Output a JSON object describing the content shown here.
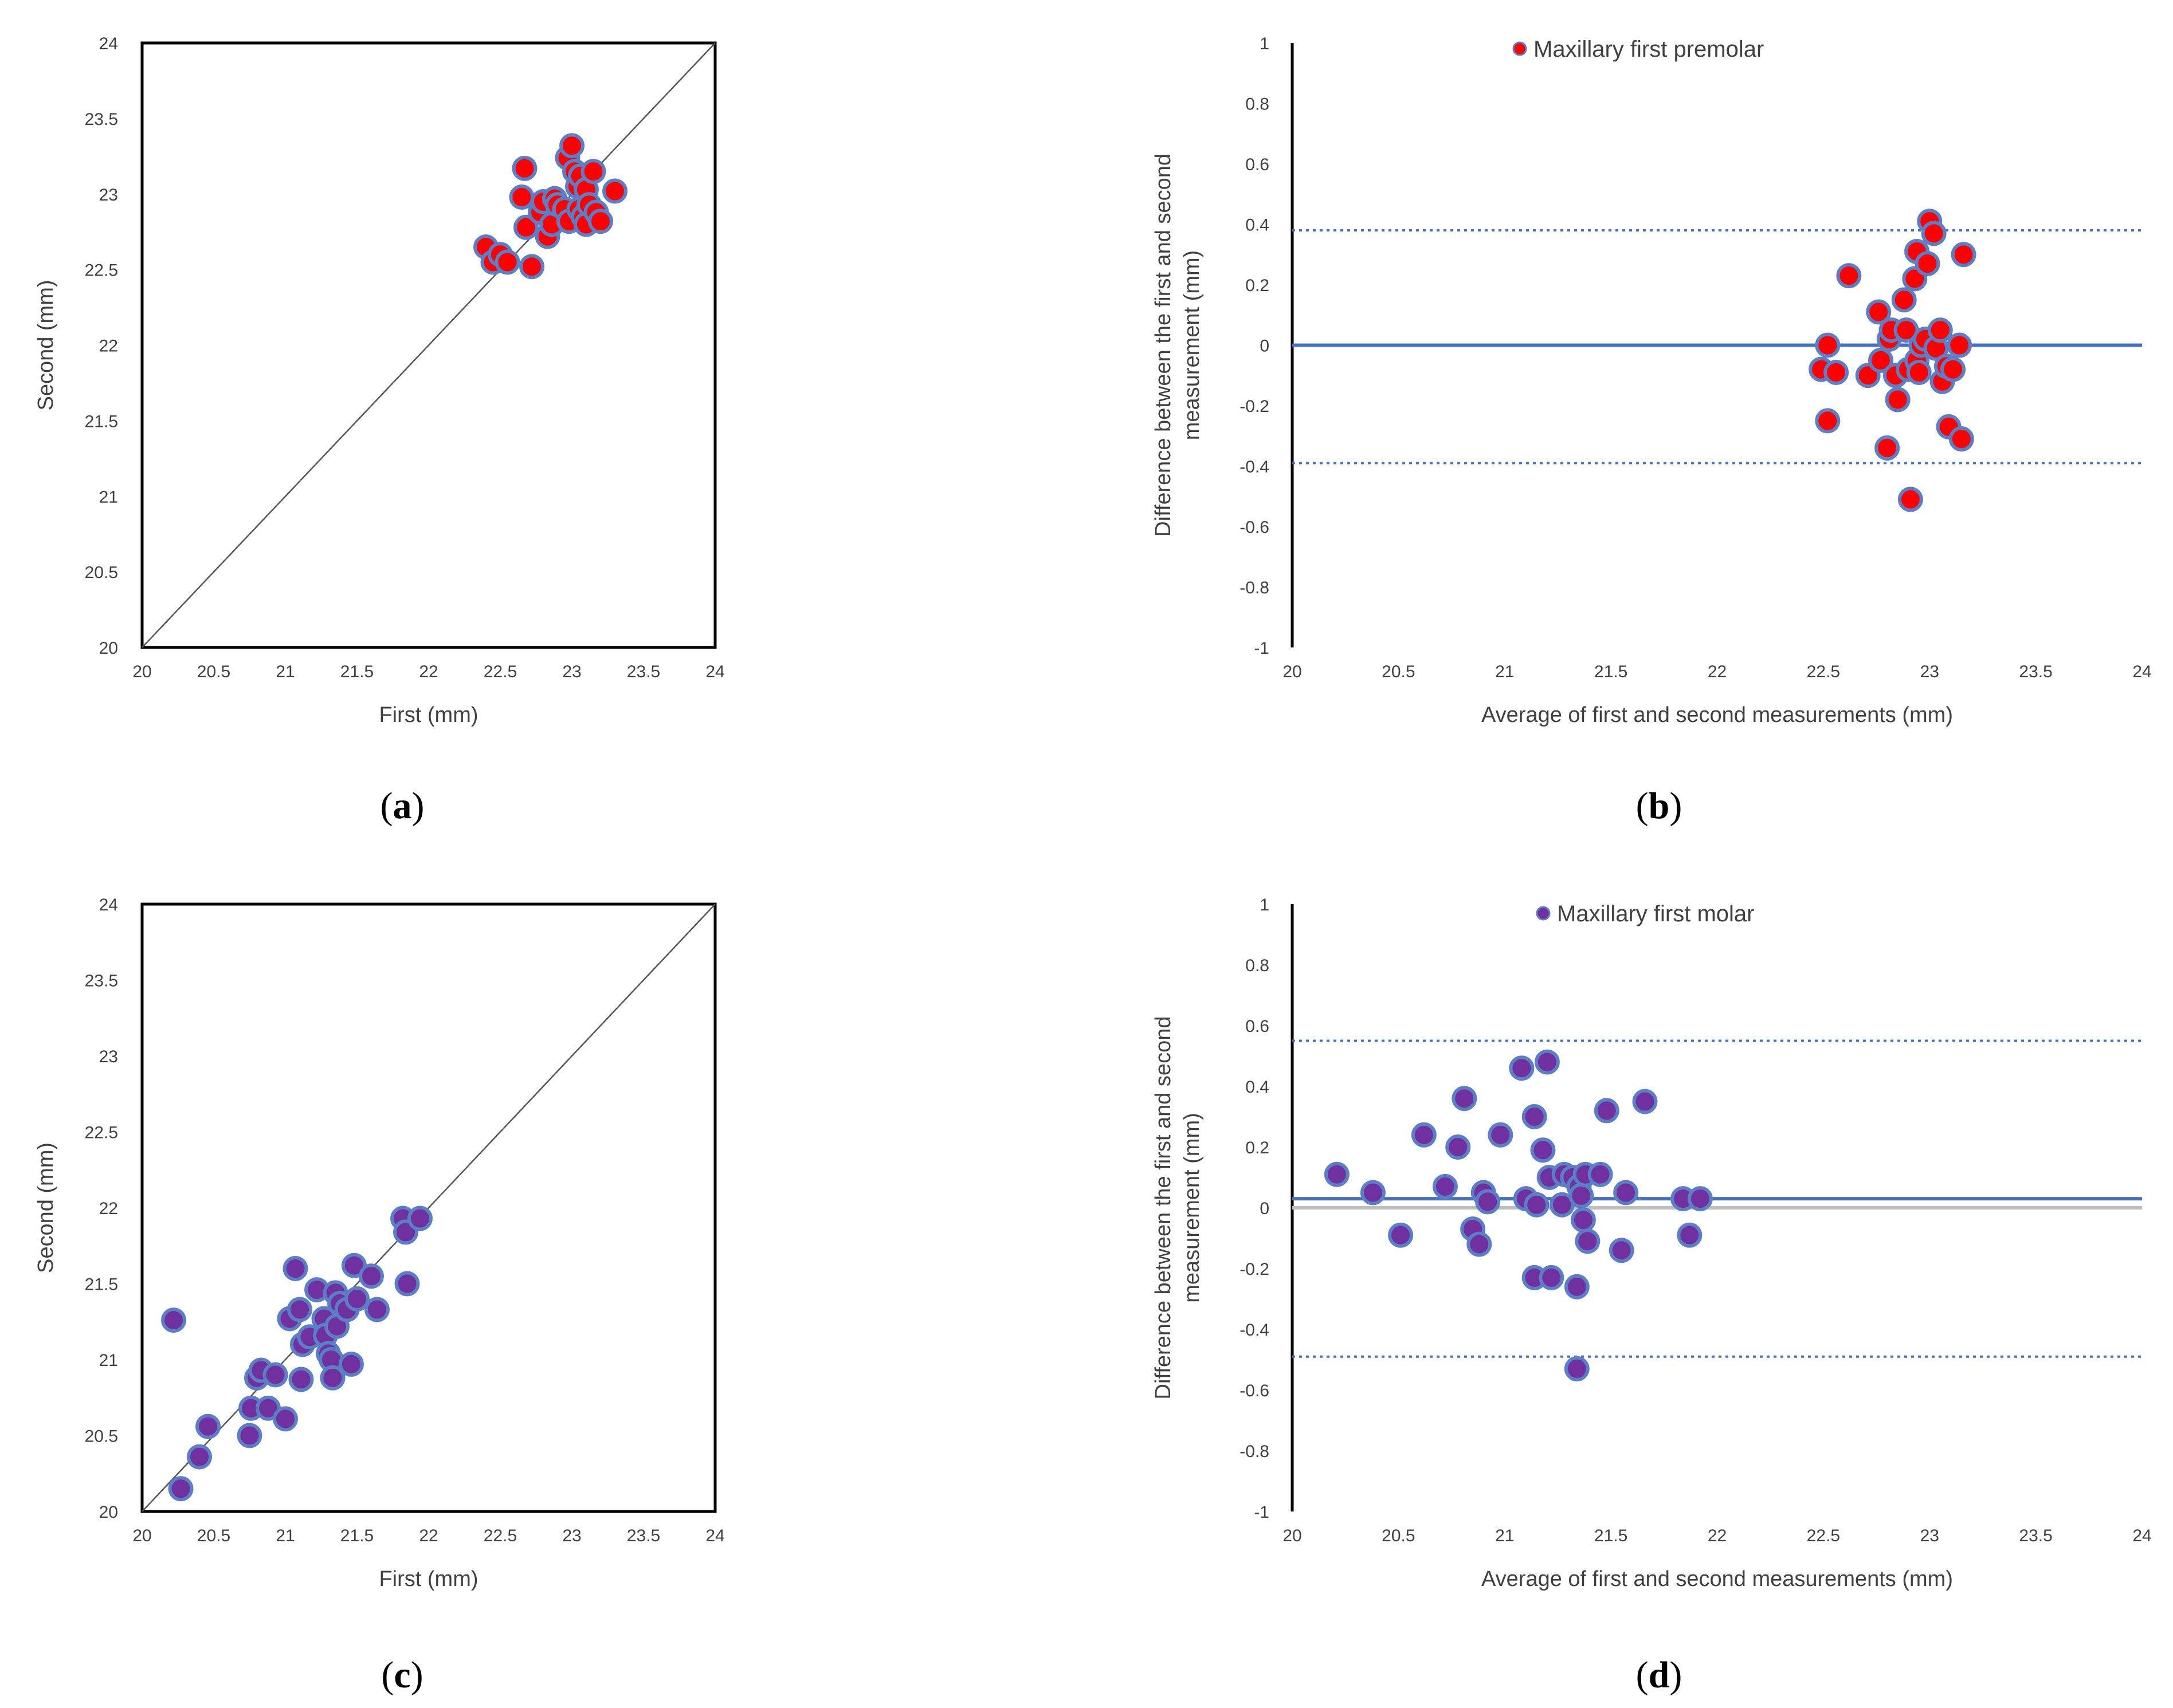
{
  "chart_data": [
    {
      "panel": "a",
      "type": "scatter",
      "xlabel": "First (mm)",
      "ylabel": "Second (mm)",
      "xlim": [
        20,
        24
      ],
      "ylim": [
        20,
        24
      ],
      "xticks": [
        "20",
        "20.5",
        "21",
        "21.5",
        "22",
        "22.5",
        "23",
        "23.5",
        "24"
      ],
      "yticks": [
        "20",
        "20.5",
        "21",
        "21.5",
        "22",
        "22.5",
        "23",
        "23.5",
        "24"
      ],
      "identity_line": true,
      "marker_color": "#ff0000",
      "marker_edge": "#5b7fc7",
      "points": [
        {
          "x": 22.4,
          "y": 22.65
        },
        {
          "x": 22.45,
          "y": 22.55
        },
        {
          "x": 22.5,
          "y": 22.6
        },
        {
          "x": 22.55,
          "y": 22.55
        },
        {
          "x": 22.65,
          "y": 22.98
        },
        {
          "x": 22.67,
          "y": 23.17
        },
        {
          "x": 22.68,
          "y": 22.78
        },
        {
          "x": 22.72,
          "y": 22.52
        },
        {
          "x": 22.78,
          "y": 22.88
        },
        {
          "x": 22.8,
          "y": 22.95
        },
        {
          "x": 22.83,
          "y": 22.72
        },
        {
          "x": 22.86,
          "y": 22.8
        },
        {
          "x": 22.88,
          "y": 22.97
        },
        {
          "x": 22.9,
          "y": 22.93
        },
        {
          "x": 22.95,
          "y": 22.9
        },
        {
          "x": 22.97,
          "y": 23.24
        },
        {
          "x": 22.98,
          "y": 22.82
        },
        {
          "x": 23.0,
          "y": 23.32
        },
        {
          "x": 23.02,
          "y": 23.15
        },
        {
          "x": 23.04,
          "y": 23.05
        },
        {
          "x": 23.05,
          "y": 22.9
        },
        {
          "x": 23.06,
          "y": 23.12
        },
        {
          "x": 23.08,
          "y": 22.85
        },
        {
          "x": 23.1,
          "y": 23.03
        },
        {
          "x": 23.1,
          "y": 22.8
        },
        {
          "x": 23.12,
          "y": 22.93
        },
        {
          "x": 23.15,
          "y": 23.15
        },
        {
          "x": 23.17,
          "y": 22.88
        },
        {
          "x": 23.2,
          "y": 22.82
        },
        {
          "x": 23.3,
          "y": 23.02
        }
      ]
    },
    {
      "panel": "b",
      "type": "scatter",
      "xlabel": "Average of first and second measurements (mm)",
      "ylabel": [
        "Difference between the first and second",
        "measurement (mm)"
      ],
      "legend": "Maxillary first premolar",
      "legend_position": "top",
      "xlim": [
        20,
        24
      ],
      "ylim": [
        -1,
        1
      ],
      "xticks": [
        "20",
        "20.5",
        "21",
        "21.5",
        "22",
        "22.5",
        "23",
        "23.5",
        "24"
      ],
      "yticks": [
        "-1",
        "-0.8",
        "-0.6",
        "-0.4",
        "-0.2",
        "0",
        "0.2",
        "0.4",
        "0.6",
        "0.8",
        "1"
      ],
      "mean_line": 0.0,
      "upper_limit": 0.38,
      "lower_limit": -0.39,
      "marker_color": "#ff0000",
      "marker_edge": "#5b7fc7",
      "points": [
        {
          "x": 22.49,
          "y": -0.08
        },
        {
          "x": 22.52,
          "y": 0.0
        },
        {
          "x": 22.52,
          "y": -0.25
        },
        {
          "x": 22.56,
          "y": -0.09
        },
        {
          "x": 22.62,
          "y": 0.23
        },
        {
          "x": 22.71,
          "y": -0.1
        },
        {
          "x": 22.76,
          "y": 0.11
        },
        {
          "x": 22.77,
          "y": -0.05
        },
        {
          "x": 22.8,
          "y": -0.34
        },
        {
          "x": 22.81,
          "y": 0.02
        },
        {
          "x": 22.82,
          "y": 0.05
        },
        {
          "x": 22.84,
          "y": -0.1
        },
        {
          "x": 22.85,
          "y": -0.18
        },
        {
          "x": 22.88,
          "y": 0.15
        },
        {
          "x": 22.89,
          "y": 0.05
        },
        {
          "x": 22.9,
          "y": -0.08
        },
        {
          "x": 22.91,
          "y": -0.51
        },
        {
          "x": 22.93,
          "y": 0.22
        },
        {
          "x": 22.94,
          "y": -0.05
        },
        {
          "x": 22.94,
          "y": 0.31
        },
        {
          "x": 22.95,
          "y": -0.09
        },
        {
          "x": 22.96,
          "y": 0.0
        },
        {
          "x": 22.98,
          "y": 0.02
        },
        {
          "x": 22.99,
          "y": 0.27
        },
        {
          "x": 23.0,
          "y": 0.41
        },
        {
          "x": 23.02,
          "y": 0.37
        },
        {
          "x": 23.03,
          "y": -0.01
        },
        {
          "x": 23.05,
          "y": 0.05
        },
        {
          "x": 23.06,
          "y": -0.12
        },
        {
          "x": 23.08,
          "y": -0.07
        },
        {
          "x": 23.09,
          "y": -0.27
        },
        {
          "x": 23.11,
          "y": -0.08
        },
        {
          "x": 23.14,
          "y": 0.0
        },
        {
          "x": 23.15,
          "y": -0.31
        },
        {
          "x": 23.16,
          "y": 0.3
        }
      ]
    },
    {
      "panel": "c",
      "type": "scatter",
      "xlabel": "First (mm)",
      "ylabel": "Second (mm)",
      "xlim": [
        20,
        24
      ],
      "ylim": [
        20,
        24
      ],
      "xticks": [
        "20",
        "20.5",
        "21",
        "21.5",
        "22",
        "22.5",
        "23",
        "23.5",
        "24"
      ],
      "yticks": [
        "20",
        "20.5",
        "21",
        "21.5",
        "22",
        "22.5",
        "23",
        "23.5",
        "24"
      ],
      "identity_line": true,
      "marker_color": "#7030a0",
      "marker_edge": "#5b7fc7",
      "points": [
        {
          "x": 20.22,
          "y": 21.26
        },
        {
          "x": 20.27,
          "y": 20.15
        },
        {
          "x": 20.4,
          "y": 20.36
        },
        {
          "x": 20.46,
          "y": 20.56
        },
        {
          "x": 20.75,
          "y": 20.5
        },
        {
          "x": 20.76,
          "y": 20.68
        },
        {
          "x": 20.8,
          "y": 20.88
        },
        {
          "x": 20.83,
          "y": 20.93
        },
        {
          "x": 20.88,
          "y": 20.68
        },
        {
          "x": 20.93,
          "y": 20.9
        },
        {
          "x": 21.0,
          "y": 20.61
        },
        {
          "x": 21.03,
          "y": 21.27
        },
        {
          "x": 21.07,
          "y": 21.6
        },
        {
          "x": 21.1,
          "y": 21.33
        },
        {
          "x": 21.11,
          "y": 20.87
        },
        {
          "x": 21.12,
          "y": 21.1
        },
        {
          "x": 21.17,
          "y": 21.15
        },
        {
          "x": 21.22,
          "y": 21.46
        },
        {
          "x": 21.27,
          "y": 21.27
        },
        {
          "x": 21.28,
          "y": 21.16
        },
        {
          "x": 21.3,
          "y": 21.04
        },
        {
          "x": 21.32,
          "y": 21.0
        },
        {
          "x": 21.33,
          "y": 20.88
        },
        {
          "x": 21.35,
          "y": 21.44
        },
        {
          "x": 21.36,
          "y": 21.22
        },
        {
          "x": 21.38,
          "y": 21.37
        },
        {
          "x": 21.43,
          "y": 21.33
        },
        {
          "x": 21.46,
          "y": 20.97
        },
        {
          "x": 21.48,
          "y": 21.62
        },
        {
          "x": 21.5,
          "y": 21.4
        },
        {
          "x": 21.6,
          "y": 21.55
        },
        {
          "x": 21.64,
          "y": 21.33
        },
        {
          "x": 21.82,
          "y": 21.93
        },
        {
          "x": 21.84,
          "y": 21.84
        },
        {
          "x": 21.85,
          "y": 21.5
        },
        {
          "x": 21.94,
          "y": 21.93
        }
      ]
    },
    {
      "panel": "d",
      "type": "scatter",
      "xlabel": "Average of first and second measurements (mm)",
      "ylabel": [
        "Difference between the first and second",
        "measurement (mm)"
      ],
      "legend": "Maxillary first molar",
      "legend_position": "top",
      "xlim": [
        20,
        24
      ],
      "ylim": [
        -1,
        1
      ],
      "xticks": [
        "20",
        "20.5",
        "21",
        "21.5",
        "22",
        "22.5",
        "23",
        "23.5",
        "24"
      ],
      "yticks": [
        "-1",
        "-0.8",
        "-0.6",
        "-0.4",
        "-0.2",
        "0",
        "0.2",
        "0.4",
        "0.6",
        "0.8",
        "1"
      ],
      "zero_line": 0.0,
      "mean_line": 0.03,
      "upper_limit": 0.55,
      "lower_limit": -0.49,
      "marker_color": "#7030a0",
      "marker_edge": "#5b7fc7",
      "points": [
        {
          "x": 20.21,
          "y": 0.11
        },
        {
          "x": 20.38,
          "y": 0.05
        },
        {
          "x": 20.51,
          "y": -0.09
        },
        {
          "x": 20.62,
          "y": 0.24
        },
        {
          "x": 20.72,
          "y": 0.07
        },
        {
          "x": 20.78,
          "y": 0.2
        },
        {
          "x": 20.81,
          "y": 0.36
        },
        {
          "x": 20.85,
          "y": -0.07
        },
        {
          "x": 20.88,
          "y": -0.12
        },
        {
          "x": 20.9,
          "y": 0.05
        },
        {
          "x": 20.92,
          "y": 0.02
        },
        {
          "x": 20.98,
          "y": 0.24
        },
        {
          "x": 21.08,
          "y": 0.46
        },
        {
          "x": 21.1,
          "y": 0.03
        },
        {
          "x": 21.14,
          "y": 0.3
        },
        {
          "x": 21.14,
          "y": -0.23
        },
        {
          "x": 21.15,
          "y": 0.01
        },
        {
          "x": 21.18,
          "y": 0.19
        },
        {
          "x": 21.2,
          "y": 0.48
        },
        {
          "x": 21.21,
          "y": 0.1
        },
        {
          "x": 21.22,
          "y": -0.23
        },
        {
          "x": 21.27,
          "y": 0.01
        },
        {
          "x": 21.28,
          "y": 0.11
        },
        {
          "x": 21.32,
          "y": 0.1
        },
        {
          "x": 21.34,
          "y": -0.26
        },
        {
          "x": 21.34,
          "y": -0.53
        },
        {
          "x": 21.35,
          "y": 0.07
        },
        {
          "x": 21.36,
          "y": 0.04
        },
        {
          "x": 21.37,
          "y": -0.04
        },
        {
          "x": 21.38,
          "y": 0.11
        },
        {
          "x": 21.39,
          "y": -0.11
        },
        {
          "x": 21.45,
          "y": 0.11
        },
        {
          "x": 21.48,
          "y": 0.32
        },
        {
          "x": 21.55,
          "y": -0.14
        },
        {
          "x": 21.57,
          "y": 0.05
        },
        {
          "x": 21.66,
          "y": 0.35
        },
        {
          "x": 21.84,
          "y": 0.03
        },
        {
          "x": 21.87,
          "y": -0.09
        },
        {
          "x": 21.92,
          "y": 0.03
        }
      ]
    }
  ],
  "panel_labels": {
    "a": {
      "open": "(",
      "letter": "a",
      "close": ")"
    },
    "b": {
      "open": "(",
      "letter": "b",
      "close": ")"
    },
    "c": {
      "open": "(",
      "letter": "c",
      "close": ")"
    },
    "d": {
      "open": "(",
      "letter": "d",
      "close": ")"
    }
  }
}
